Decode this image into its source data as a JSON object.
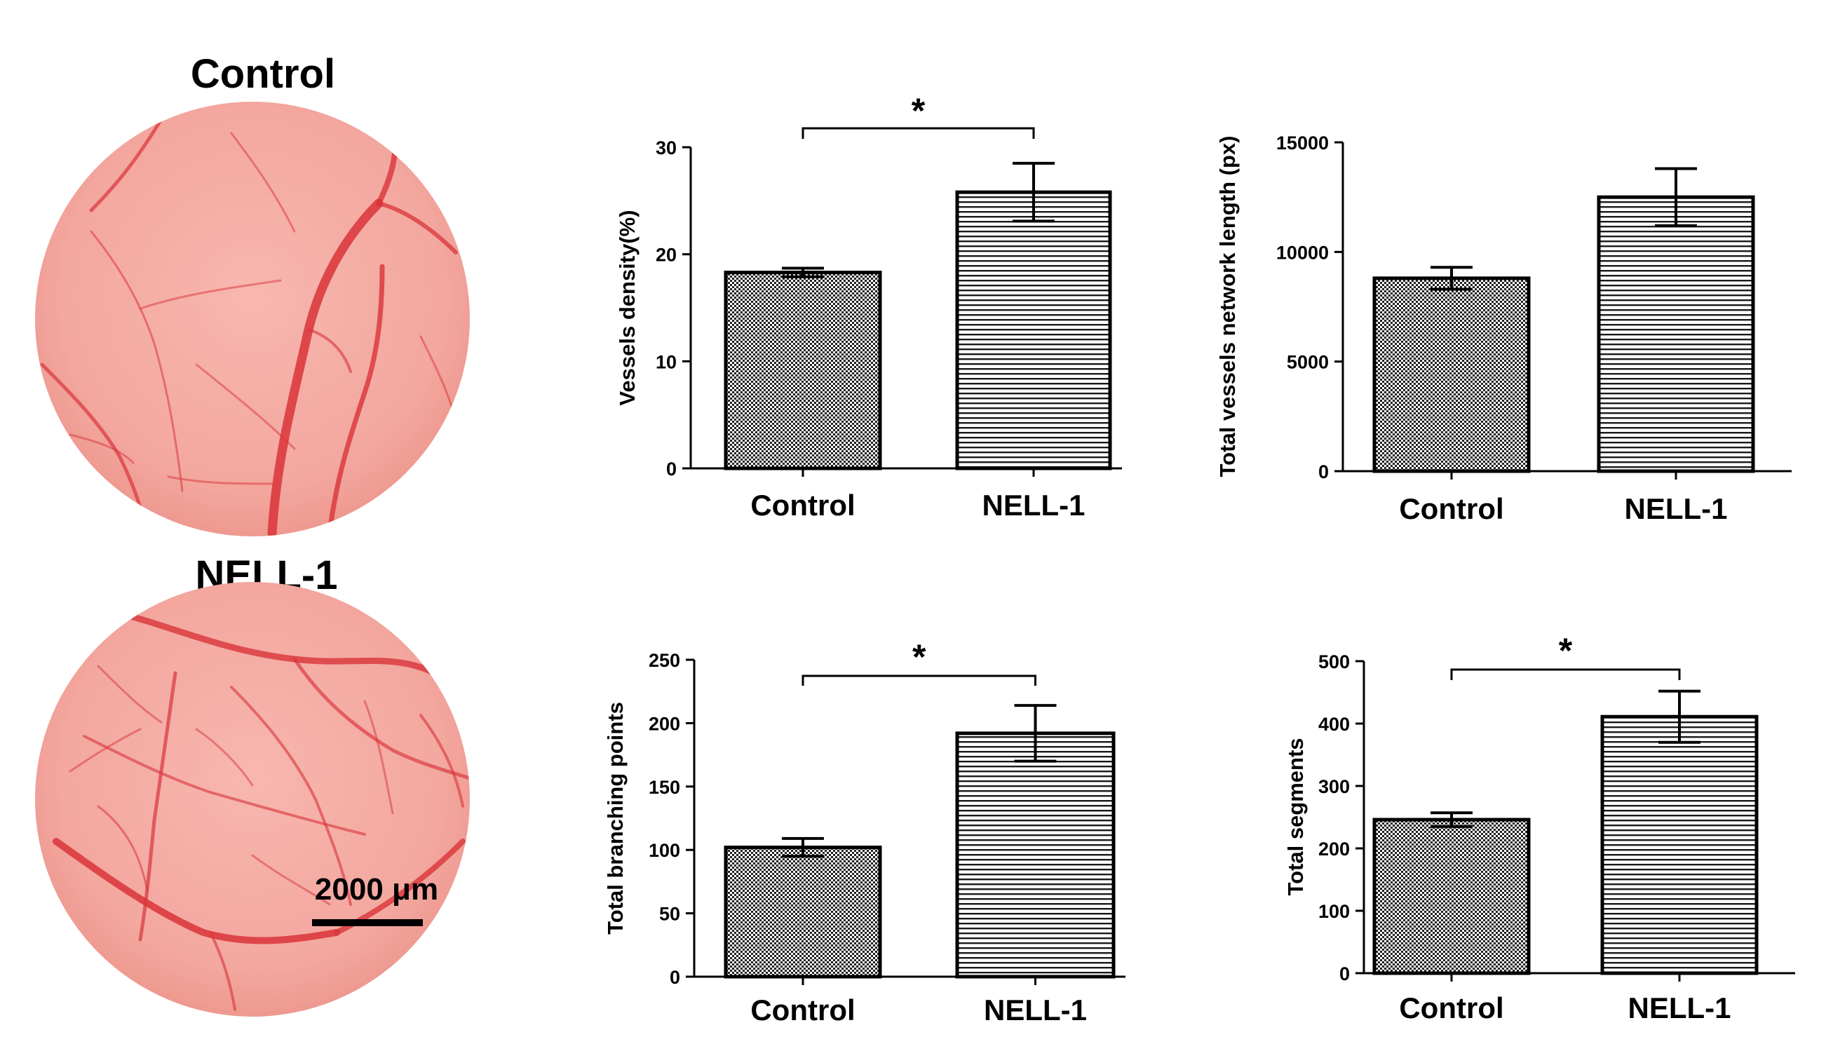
{
  "images": {
    "control_title": "Control",
    "nell_title": "NELL-1",
    "scale_bar_label": "2000 μm",
    "background_color": "#f4a9a2",
    "vessel_color": "#d9343a"
  },
  "chart_data": [
    {
      "type": "bar",
      "title": "",
      "xlabel": "",
      "ylabel": "Vessels density(%)",
      "categories": [
        "Control",
        "NELL-1"
      ],
      "values": [
        18.3,
        25.8
      ],
      "errors": [
        0.4,
        2.7
      ],
      "ylim": [
        0,
        30
      ],
      "yticks": [
        "0",
        "10",
        "20",
        "30"
      ],
      "significance": "*"
    },
    {
      "type": "bar",
      "title": "",
      "xlabel": "",
      "ylabel": "Total vessels network length (px)",
      "categories": [
        "Control",
        "NELL-1"
      ],
      "values": [
        8800,
        12500
      ],
      "errors": [
        500,
        1300
      ],
      "ylim": [
        0,
        15000
      ],
      "yticks": [
        "0",
        "5000",
        "10000",
        "15000"
      ],
      "significance": ""
    },
    {
      "type": "bar",
      "title": "",
      "xlabel": "",
      "ylabel": "Total branching points",
      "categories": [
        "Control",
        "NELL-1"
      ],
      "values": [
        102,
        192
      ],
      "errors": [
        7,
        22
      ],
      "ylim": [
        0,
        250
      ],
      "yticks": [
        "0",
        "50",
        "100",
        "150",
        "200",
        "250"
      ],
      "significance": "*"
    },
    {
      "type": "bar",
      "title": "",
      "xlabel": "",
      "ylabel": "Total segments",
      "categories": [
        "Control",
        "NELL-1"
      ],
      "values": [
        246,
        411
      ],
      "errors": [
        11,
        41
      ],
      "ylim": [
        0,
        500
      ],
      "yticks": [
        "0",
        "100",
        "200",
        "300",
        "400",
        "500"
      ],
      "significance": "*"
    }
  ]
}
